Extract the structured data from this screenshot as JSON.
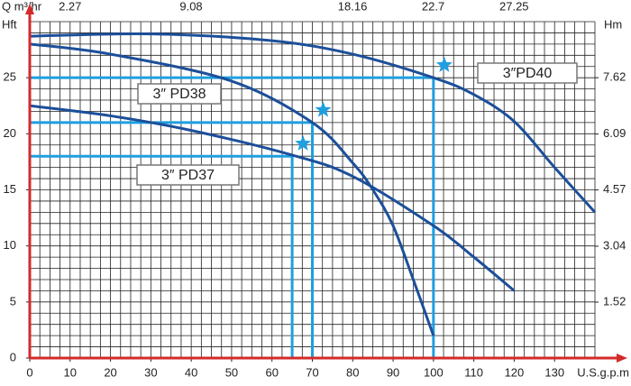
{
  "chart_data": {
    "type": "line",
    "x_label": "U.S.g.p.m",
    "y_label": "Hft",
    "y2_label": "Hm",
    "x2_label": "Q m³/hr",
    "xlim": [
      0,
      140
    ],
    "xticks": [
      0,
      10,
      20,
      30,
      40,
      50,
      60,
      70,
      80,
      90,
      100,
      110,
      120,
      130
    ],
    "ylim": [
      0,
      30
    ],
    "yticks": [
      0,
      5,
      10,
      15,
      20,
      25
    ],
    "y2lim": [
      0,
      9.144
    ],
    "y2ticks": [
      1.52,
      3.04,
      4.57,
      6.09,
      7.62
    ],
    "x2lim": [
      0,
      31.8
    ],
    "x2ticks": [
      2.27,
      9.08,
      18.16,
      22.7,
      27.25
    ],
    "grid": true,
    "grid_xstep": 2.5,
    "grid_ystep": 1,
    "axis_color": "#d42a2a",
    "guide_color": "#1e9fe0",
    "series": [
      {
        "name": "3″PD40",
        "color": "#1c4f9a",
        "x": [
          0,
          30,
          60,
          80,
          100,
          110,
          120,
          130,
          140
        ],
        "y": [
          28.7,
          28.9,
          28.3,
          27.1,
          25,
          23.5,
          21.1,
          17,
          13
        ]
      },
      {
        "name": "3″ PD38",
        "color": "#1c4f9a",
        "x": [
          0,
          20,
          50,
          70,
          80,
          85,
          90,
          95,
          100
        ],
        "y": [
          28,
          27.1,
          24.7,
          21,
          17.4,
          15,
          11.8,
          7,
          2
        ]
      },
      {
        "name": "3″ PD37",
        "color": "#1c4f9a",
        "x": [
          0,
          20,
          40,
          65,
          80,
          100,
          110,
          120
        ],
        "y": [
          22.5,
          21.6,
          20.3,
          18.1,
          16.2,
          11.8,
          9,
          6
        ]
      }
    ],
    "duty_points": [
      {
        "x": 100,
        "y": 25
      },
      {
        "x": 70,
        "y": 21
      },
      {
        "x": 65,
        "y": 18
      }
    ]
  }
}
